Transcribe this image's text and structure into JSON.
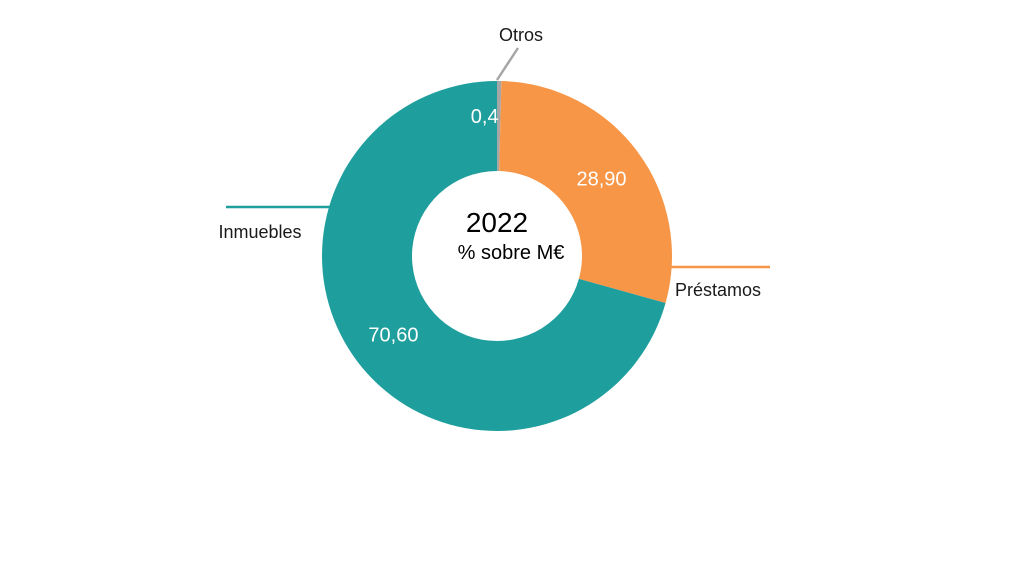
{
  "chart_data": {
    "type": "pie",
    "variant": "donut",
    "center_title": "2022",
    "center_subtitle": "% sobre M€",
    "slices": [
      {
        "name": "Otros",
        "value": 0.4,
        "value_label": "0,4",
        "color": "#A6A6A6"
      },
      {
        "name": "Préstamos",
        "value": 28.9,
        "value_label": "28,90",
        "color": "#F79646"
      },
      {
        "name": "Inmuebles",
        "value": 70.6,
        "value_label": "70,60",
        "color": "#1F9E9E"
      }
    ],
    "start_angle": "12 o'clock, clockwise",
    "legend": "none (leader-line labels)"
  }
}
